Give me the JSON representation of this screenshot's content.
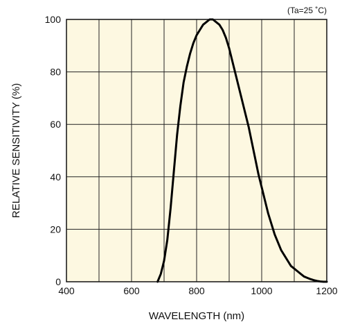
{
  "chart_data": {
    "type": "line",
    "title": "",
    "xlabel": "WAVELENGTH (nm)",
    "ylabel": "RELATIVE SENSITIVITY (%)",
    "annotation": "(Ta=25 ˚C)",
    "xlim": [
      400,
      1200
    ],
    "ylim": [
      0,
      100
    ],
    "x_ticks": [
      400,
      600,
      800,
      1000,
      1200
    ],
    "y_ticks": [
      0,
      20,
      40,
      60,
      80,
      100
    ],
    "grid": true,
    "background_color": "#fdf8e1",
    "line_color": "#000000",
    "series": [
      {
        "x": [
          680,
          690,
          700,
          710,
          720,
          730,
          740,
          750,
          760,
          770,
          780,
          790,
          800,
          810,
          820,
          830,
          840,
          850,
          860,
          870,
          880,
          890,
          900,
          910,
          920,
          930,
          940,
          950,
          960,
          970,
          980,
          990,
          1000,
          1010,
          1020,
          1030,
          1040,
          1050,
          1060,
          1070,
          1080,
          1090,
          1100,
          1110,
          1120,
          1130,
          1140,
          1150,
          1160,
          1170,
          1180,
          1190,
          1200
        ],
        "y": [
          0,
          3,
          8,
          16,
          28,
          42,
          56,
          67,
          76,
          82,
          87,
          91,
          94,
          96,
          98,
          99,
          100,
          100,
          99,
          98,
          96,
          93,
          89,
          84,
          79,
          74,
          69,
          64,
          59,
          53,
          47,
          41,
          36,
          31,
          26,
          22,
          18,
          15,
          12,
          10,
          8,
          6,
          5,
          4,
          3,
          2,
          1.5,
          1,
          0.6,
          0.3,
          0.1,
          0,
          0
        ]
      }
    ]
  }
}
